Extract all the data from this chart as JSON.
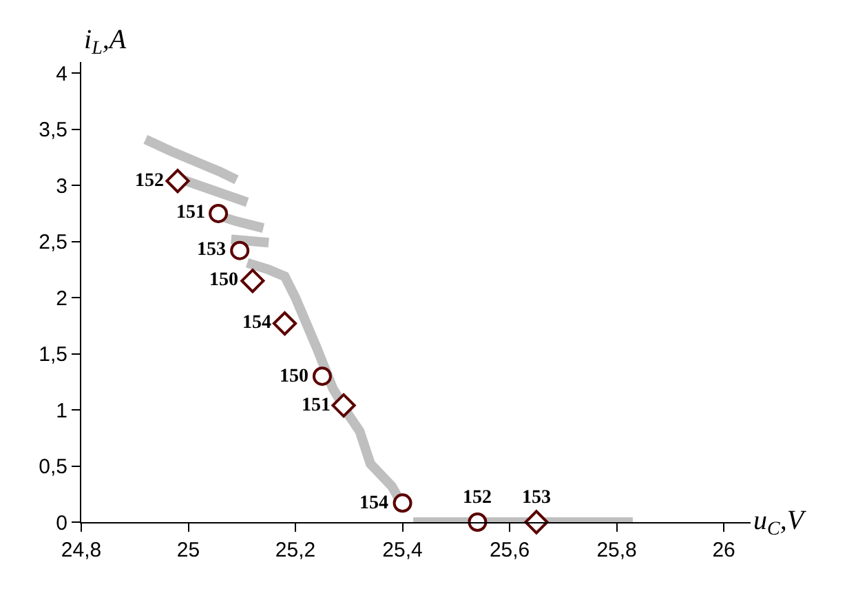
{
  "chart_data": {
    "type": "scatter",
    "xlabel": "u$_{C}$,V",
    "ylabel": "i$_{L}$,A",
    "xlim": [
      24.8,
      26.05
    ],
    "ylim": [
      0,
      4.1
    ],
    "xticks": [
      {
        "value": 24.8,
        "label": "24,8"
      },
      25,
      {
        "value": 25.2,
        "label": "25,2"
      },
      {
        "value": 25.4,
        "label": "25,4"
      },
      {
        "value": 25.6,
        "label": "25,6"
      },
      {
        "value": 25.8,
        "label": "25,8"
      },
      26
    ],
    "yticks": [
      0,
      {
        "value": 0.5,
        "label": "0,5"
      },
      1,
      {
        "value": 1.5,
        "label": "1,5"
      },
      2,
      {
        "value": 2.5,
        "label": "2,5"
      },
      3,
      {
        "value": 3.5,
        "label": "3,5"
      },
      4
    ],
    "series": [
      {
        "type": "line",
        "color": "#bfbfbf",
        "x": [
          24.92,
          24.97,
          25.02,
          25.06,
          25.09,
          null,
          24.99,
          25.05,
          25.11,
          null,
          25.05,
          25.09,
          25.14,
          null,
          25.08,
          25.15,
          null,
          25.11,
          25.15,
          25.18,
          25.2,
          25.24,
          25.27,
          25.3,
          25.32,
          25.34,
          25.36,
          25.38,
          25.4,
          null,
          25.42,
          25.5,
          25.6,
          25.7,
          25.83
        ],
        "values": [
          3.41,
          3.3,
          3.2,
          3.12,
          3.05,
          null,
          3.05,
          2.95,
          2.85,
          null,
          2.74,
          2.68,
          2.62,
          null,
          2.52,
          2.49,
          null,
          2.31,
          2.25,
          2.19,
          2.0,
          1.55,
          1.19,
          0.95,
          0.81,
          0.52,
          0.42,
          0.32,
          0.15,
          null,
          0,
          0,
          0,
          0,
          0
        ]
      },
      {
        "marker": "circle",
        "color": "#5a0000",
        "x": [
          25.056,
          25.096,
          25.25,
          25.4,
          25.54
        ],
        "values": [
          2.75,
          2.42,
          1.3,
          0.17,
          0
        ]
      },
      {
        "marker": "diamond",
        "color": "#5a0000",
        "x": [
          24.98,
          25.12,
          25.18,
          25.29,
          25.65
        ],
        "values": [
          3.04,
          2.15,
          1.77,
          1.04,
          0
        ]
      }
    ],
    "annotations": [
      {
        "text": "151",
        "x": 25.056,
        "y": 2.75
      },
      {
        "text": "153",
        "x": 25.096,
        "y": 2.42
      },
      {
        "text": "150",
        "x": 25.25,
        "y": 1.3
      },
      {
        "text": "154",
        "x": 25.4,
        "y": 0.17
      },
      {
        "text": "152",
        "x": 25.54,
        "y": 0
      },
      {
        "text": "152",
        "x": 24.98,
        "y": 3.04
      },
      {
        "text": "150",
        "x": 25.12,
        "y": 2.15
      },
      {
        "text": "154",
        "x": 25.18,
        "y": 1.77
      },
      {
        "text": "151",
        "x": 25.29,
        "y": 1.04
      },
      {
        "text": "153",
        "x": 25.65,
        "y": 0
      }
    ]
  }
}
